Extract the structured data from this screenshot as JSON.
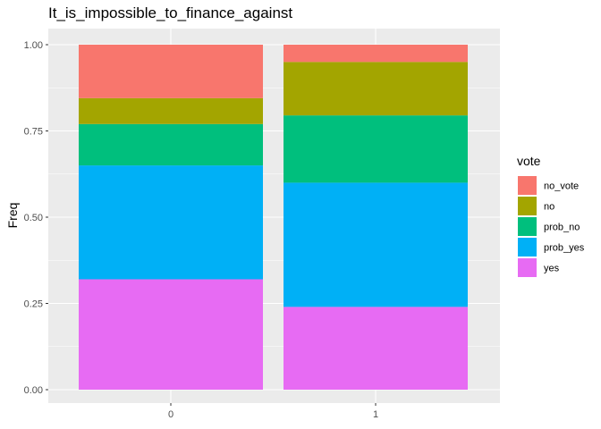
{
  "chart_data": {
    "type": "bar",
    "stacked": true,
    "normalized": true,
    "title": "It_is_impossible_to_finance_against",
    "xlabel": "",
    "ylabel": "Freq",
    "categories": [
      "0",
      "1"
    ],
    "ylim": [
      0,
      1
    ],
    "yticks": [
      0,
      0.25,
      0.5,
      0.75,
      1
    ],
    "ytick_labels": [
      "0.00",
      "0.25",
      "0.50",
      "0.75",
      "1.00"
    ],
    "grid": true,
    "legend": {
      "title": "vote",
      "position": "right"
    },
    "series": [
      {
        "name": "no_vote",
        "color": "#F8766D",
        "values": [
          0.155,
          0.05
        ]
      },
      {
        "name": "no",
        "color": "#A3A500",
        "values": [
          0.075,
          0.155
        ]
      },
      {
        "name": "prob_no",
        "color": "#00BF7D",
        "values": [
          0.12,
          0.195
        ]
      },
      {
        "name": "prob_yes",
        "color": "#00B0F6",
        "values": [
          0.33,
          0.36
        ]
      },
      {
        "name": "yes",
        "color": "#E76BF3",
        "values": [
          0.32,
          0.24
        ]
      }
    ]
  },
  "colors": {
    "panel_background": "#EBEBEB",
    "grid_line": "#FFFFFF"
  }
}
